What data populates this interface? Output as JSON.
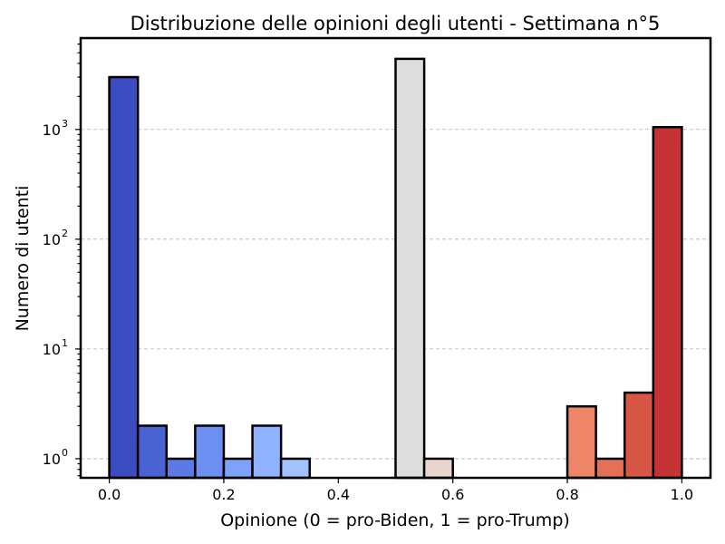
{
  "chart_data": {
    "type": "bar",
    "title": "Distribuzione delle opinioni degli utenti - Settimana n°5",
    "xlabel": "Opinione (0 = pro-Biden, 1 = pro-Trump)",
    "ylabel": "Numero di utenti",
    "yscale": "log",
    "xlim": [
      -0.05,
      1.05
    ],
    "ylim": [
      0.67,
      6800
    ],
    "grid": "y-major-dashed",
    "x_ticks": [
      "0.0",
      "0.2",
      "0.4",
      "0.6",
      "0.8",
      "1.0"
    ],
    "y_ticks": [
      {
        "base": "10",
        "exp": "0"
      },
      {
        "base": "10",
        "exp": "1"
      },
      {
        "base": "10",
        "exp": "2"
      },
      {
        "base": "10",
        "exp": "3"
      }
    ],
    "bins": [
      {
        "x0": 0.0,
        "x1": 0.05,
        "value": 3000,
        "color": "#3b4cc0"
      },
      {
        "x0": 0.05,
        "x1": 0.1,
        "value": 2,
        "color": "#4a63d3"
      },
      {
        "x0": 0.1,
        "x1": 0.15,
        "value": 1,
        "color": "#5b7ae5"
      },
      {
        "x0": 0.15,
        "x1": 0.2,
        "value": 2,
        "color": "#6c8ff1"
      },
      {
        "x0": 0.2,
        "x1": 0.25,
        "value": 1,
        "color": "#7ea1fa"
      },
      {
        "x0": 0.25,
        "x1": 0.3,
        "value": 2,
        "color": "#90b2fe"
      },
      {
        "x0": 0.3,
        "x1": 0.35,
        "value": 1,
        "color": "#a2c1ff"
      },
      {
        "x0": 0.35,
        "x1": 0.4,
        "value": 0,
        "color": "#b3cdfb"
      },
      {
        "x0": 0.4,
        "x1": 0.45,
        "value": 0,
        "color": "#c4d5f3"
      },
      {
        "x0": 0.45,
        "x1": 0.5,
        "value": 0,
        "color": "#d1dae9"
      },
      {
        "x0": 0.5,
        "x1": 0.55,
        "value": 4400,
        "color": "#dddddd"
      },
      {
        "x0": 0.55,
        "x1": 0.6,
        "value": 1,
        "color": "#e8d6cc"
      },
      {
        "x0": 0.6,
        "x1": 0.65,
        "value": 0,
        "color": "#efcfbf"
      },
      {
        "x0": 0.65,
        "x1": 0.7,
        "value": 0,
        "color": "#f3c7b1"
      },
      {
        "x0": 0.7,
        "x1": 0.75,
        "value": 0,
        "color": "#f6bea4"
      },
      {
        "x0": 0.75,
        "x1": 0.8,
        "value": 0,
        "color": "#f5b094"
      },
      {
        "x0": 0.8,
        "x1": 0.85,
        "value": 3,
        "color": "#ee8468"
      },
      {
        "x0": 0.85,
        "x1": 0.9,
        "value": 1,
        "color": "#e57058"
      },
      {
        "x0": 0.9,
        "x1": 0.95,
        "value": 4,
        "color": "#d85646"
      },
      {
        "x0": 0.95,
        "x1": 1.0,
        "value": 1050,
        "color": "#c53334"
      }
    ]
  }
}
